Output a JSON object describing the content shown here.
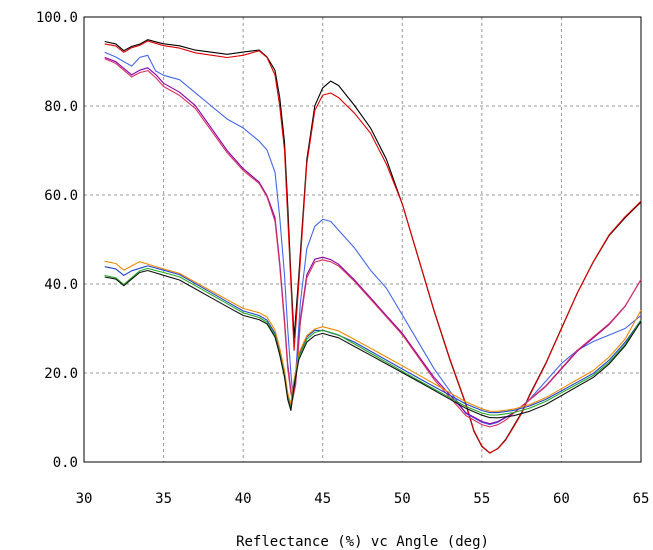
{
  "chart_data": {
    "type": "line",
    "title": "",
    "xlabel": "Reflectance (%)  vc  Angle (deg)",
    "ylabel": "",
    "xlim": [
      30,
      65
    ],
    "ylim": [
      0,
      100
    ],
    "x_ticks": [
      30,
      35,
      40,
      45,
      50,
      55,
      60,
      65
    ],
    "x_tick_labels": [
      "30",
      "35",
      "40",
      "45",
      "50",
      "55",
      "60",
      "65"
    ],
    "y_ticks": [
      0,
      20,
      40,
      60,
      80,
      100
    ],
    "y_tick_labels": [
      "0.0",
      "20.0",
      "40.0",
      "60.0",
      "80.0",
      "100.0"
    ],
    "grid": true,
    "grid_style": "dashed",
    "legend": "none",
    "series": [
      {
        "color": "#000000",
        "x": [
          31.3,
          32,
          32.5,
          33,
          33.5,
          34,
          34.5,
          35,
          36,
          37,
          38,
          39,
          40,
          41,
          41.5,
          42,
          42.3,
          42.6,
          42.8,
          43,
          43.2,
          43.5,
          44,
          44.5,
          45,
          45.5,
          46,
          47,
          48,
          49,
          50,
          51,
          52,
          53,
          54,
          54.5,
          55,
          55.5,
          56,
          56.5,
          57,
          57.5,
          58,
          59,
          60,
          61,
          62,
          63,
          64,
          65
        ],
        "y": [
          94.5,
          94,
          92.5,
          93.5,
          94,
          95,
          94.5,
          94,
          93.5,
          92.5,
          92,
          91.5,
          92,
          92.5,
          91,
          88,
          82,
          72,
          58,
          42,
          28,
          42,
          68,
          80,
          84,
          85.5,
          84.5,
          80,
          75,
          68,
          58,
          46,
          34,
          23,
          13,
          7,
          3.5,
          2,
          3,
          5,
          8,
          11,
          15,
          22,
          30,
          38,
          45,
          51,
          55,
          58.5
        ]
      },
      {
        "color": "#e00000",
        "x": [
          31.3,
          32,
          32.5,
          33,
          33.5,
          34,
          34.5,
          35,
          36,
          37,
          38,
          39,
          40,
          41,
          41.5,
          42,
          42.3,
          42.6,
          42.8,
          43,
          43.2,
          43.5,
          44,
          44.5,
          45,
          45.5,
          46,
          47,
          48,
          49,
          50,
          51,
          52,
          53,
          54,
          54.5,
          55,
          55.5,
          56,
          56.5,
          57,
          57.5,
          58,
          59,
          60,
          61,
          62,
          63,
          64,
          65
        ],
        "y": [
          94,
          93.5,
          92,
          93,
          93.5,
          94.5,
          94,
          93.5,
          93,
          92,
          91.5,
          91,
          91.5,
          92.5,
          91,
          87,
          80,
          70,
          55,
          40,
          25,
          40,
          67,
          79,
          82.5,
          83,
          82,
          78.5,
          74,
          67,
          58,
          46,
          34,
          23,
          13,
          7,
          3.5,
          2,
          3,
          5,
          8,
          11,
          15,
          22,
          30,
          38,
          45,
          51,
          55,
          58.5
        ]
      },
      {
        "color": "#4466ee",
        "x": [
          31.3,
          32,
          33,
          33.5,
          34,
          34.5,
          35,
          36,
          37,
          38,
          39,
          40,
          41,
          41.5,
          42,
          42.3,
          42.6,
          42.8,
          43,
          43.1,
          43.3,
          43.6,
          44,
          44.5,
          45,
          45.5,
          46,
          47,
          48,
          49,
          50,
          51,
          52,
          53,
          54,
          55,
          55.5,
          56,
          56.5,
          57,
          58,
          59,
          60,
          61,
          62,
          63,
          64,
          65
        ],
        "y": [
          92,
          91,
          89,
          91,
          91.5,
          88,
          87,
          86,
          83,
          80,
          77,
          75,
          72,
          70,
          65,
          55,
          42,
          30,
          20,
          16,
          20,
          36,
          48,
          53,
          54.5,
          54,
          52,
          48,
          43,
          39,
          33,
          27,
          21,
          16,
          11,
          9,
          8.5,
          9,
          10,
          11,
          14,
          18,
          22,
          25,
          27,
          28.5,
          30,
          33
        ]
      },
      {
        "color": "#8800aa",
        "x": [
          31.3,
          32,
          33,
          33.5,
          34,
          34.5,
          35,
          36,
          37,
          38,
          39,
          40,
          41,
          41.5,
          42,
          42.3,
          42.6,
          42.8,
          43,
          43.1,
          43.3,
          43.6,
          44,
          44.5,
          45,
          45.5,
          46,
          47,
          48,
          49,
          50,
          51,
          52,
          53,
          54,
          55,
          55.5,
          56,
          56.5,
          57,
          58,
          59,
          60,
          61,
          62,
          63,
          64,
          65
        ],
        "y": [
          91,
          90,
          87,
          88,
          88.5,
          87,
          85,
          83,
          80,
          75,
          70,
          66,
          63,
          60,
          55,
          45,
          32,
          22,
          16,
          14,
          18,
          32,
          42,
          45.5,
          46,
          45.5,
          44.5,
          41,
          37,
          33,
          29,
          24,
          19,
          15,
          11,
          9,
          8.5,
          9,
          10,
          11,
          14,
          17,
          21,
          25,
          28,
          31,
          35,
          41
        ]
      },
      {
        "color": "#d83060",
        "x": [
          31.3,
          32,
          33,
          33.5,
          34,
          34.5,
          35,
          36,
          37,
          38,
          39,
          40,
          41,
          41.5,
          42,
          42.3,
          42.6,
          42.8,
          43,
          43.1,
          43.3,
          43.6,
          44,
          44.5,
          45,
          45.5,
          46,
          47,
          48,
          49,
          50,
          51,
          52,
          53,
          54,
          55,
          55.5,
          56,
          56.5,
          57,
          58,
          59,
          60,
          61,
          62,
          63,
          64,
          65
        ],
        "y": [
          90.5,
          89.5,
          86.5,
          87.5,
          88,
          86.5,
          84.5,
          82.5,
          79.5,
          74.5,
          69.5,
          65.5,
          62.5,
          59.5,
          54,
          44,
          31,
          21,
          15.5,
          14,
          17.5,
          31.5,
          41.5,
          45,
          45.5,
          45,
          44,
          40.5,
          36.5,
          32.5,
          28.5,
          23.5,
          18.5,
          14.5,
          10.5,
          8.5,
          8,
          8.5,
          9.5,
          11,
          14,
          17,
          21,
          25,
          28,
          31,
          35,
          41
        ]
      },
      {
        "color": "#2244cc",
        "x": [
          31.3,
          32,
          32.5,
          33,
          33.5,
          34,
          34.5,
          35,
          36,
          37,
          38,
          39,
          40,
          41,
          41.5,
          42,
          42.3,
          42.6,
          42.8,
          43,
          43.2,
          43.5,
          44,
          44.5,
          45,
          45.5,
          46,
          47,
          48,
          49,
          50,
          51,
          52,
          53,
          54,
          55,
          55.5,
          56,
          57,
          58,
          59,
          60,
          61,
          62,
          63,
          64,
          65
        ],
        "y": [
          44,
          43.5,
          42,
          43,
          43.5,
          44,
          43.5,
          43,
          42,
          40,
          38,
          36,
          34,
          33,
          32,
          29,
          25,
          20,
          15,
          12.5,
          18,
          24,
          28,
          29.5,
          29.5,
          29,
          28.5,
          27,
          25,
          23,
          21,
          19,
          17,
          15,
          13,
          11.5,
          11,
          11,
          11.5,
          12.5,
          14,
          16,
          18,
          20,
          23,
          27,
          32
        ]
      },
      {
        "color": "#ee8800",
        "x": [
          31.3,
          32,
          32.5,
          33,
          33.5,
          34,
          34.5,
          35,
          36,
          37,
          38,
          39,
          40,
          41,
          41.5,
          42,
          42.3,
          42.6,
          42.8,
          43,
          43.2,
          43.5,
          44,
          44.5,
          45,
          45.5,
          46,
          47,
          48,
          49,
          50,
          51,
          52,
          53,
          54,
          55,
          55.5,
          56,
          57,
          58,
          59,
          60,
          61,
          62,
          63,
          64,
          65
        ],
        "y": [
          45,
          44.5,
          43,
          44,
          45,
          44.5,
          44,
          43.5,
          42.5,
          40.5,
          38.5,
          36.5,
          34.5,
          33.5,
          32.5,
          29.5,
          25.5,
          20.5,
          15.5,
          13,
          18.5,
          24.5,
          28.5,
          30,
          30.5,
          30,
          29.5,
          27.5,
          25.5,
          23.5,
          21.5,
          19.5,
          17.5,
          15.5,
          13.5,
          12,
          11.5,
          11.5,
          12,
          13,
          14.5,
          16.5,
          18.5,
          20.5,
          23.5,
          27.5,
          34
        ]
      },
      {
        "color": "#22aa22",
        "x": [
          31.3,
          32,
          32.5,
          33,
          33.5,
          34,
          34.5,
          35,
          36,
          37,
          38,
          39,
          40,
          41,
          41.5,
          42,
          42.3,
          42.6,
          42.8,
          43,
          43.2,
          43.5,
          44,
          44.5,
          45,
          45.5,
          46,
          47,
          48,
          49,
          50,
          51,
          52,
          53,
          54,
          55,
          55.5,
          56,
          57,
          58,
          59,
          60,
          61,
          62,
          63,
          64,
          65
        ],
        "y": [
          42,
          41.5,
          40,
          41.5,
          43,
          43.5,
          43,
          42.5,
          41.5,
          39.5,
          37.5,
          35.5,
          33.5,
          32.5,
          31.5,
          28.5,
          24.5,
          19.5,
          14.5,
          12,
          17.5,
          23.5,
          27.5,
          29,
          29.5,
          29,
          28.5,
          26.5,
          24.5,
          22.5,
          20.5,
          18.5,
          16.5,
          14.5,
          12.5,
          11,
          10.5,
          10.5,
          11,
          12,
          13.5,
          15.5,
          17.5,
          19.5,
          22.5,
          26.5,
          32
        ]
      },
      {
        "color": "#111111",
        "x": [
          31.3,
          32,
          32.5,
          33,
          33.5,
          34,
          34.5,
          35,
          36,
          37,
          38,
          39,
          40,
          41,
          41.5,
          42,
          42.3,
          42.6,
          42.8,
          43,
          43.2,
          43.5,
          44,
          44.5,
          45,
          45.5,
          46,
          47,
          48,
          49,
          50,
          51,
          52,
          53,
          54,
          55,
          55.5,
          56,
          57,
          58,
          59,
          60,
          61,
          62,
          63,
          64,
          65
        ],
        "y": [
          41.5,
          41,
          39.5,
          41,
          42.5,
          43,
          42.5,
          42,
          41,
          39,
          37,
          35,
          33,
          32,
          31,
          28,
          24,
          19,
          14,
          11.5,
          17,
          23,
          27,
          28.5,
          29,
          28.5,
          28,
          26,
          24,
          22,
          20,
          18,
          16,
          14,
          12,
          10.5,
          10,
          10,
          10.5,
          11.5,
          13,
          15,
          17,
          19,
          22,
          26,
          31.5
        ]
      }
    ]
  }
}
